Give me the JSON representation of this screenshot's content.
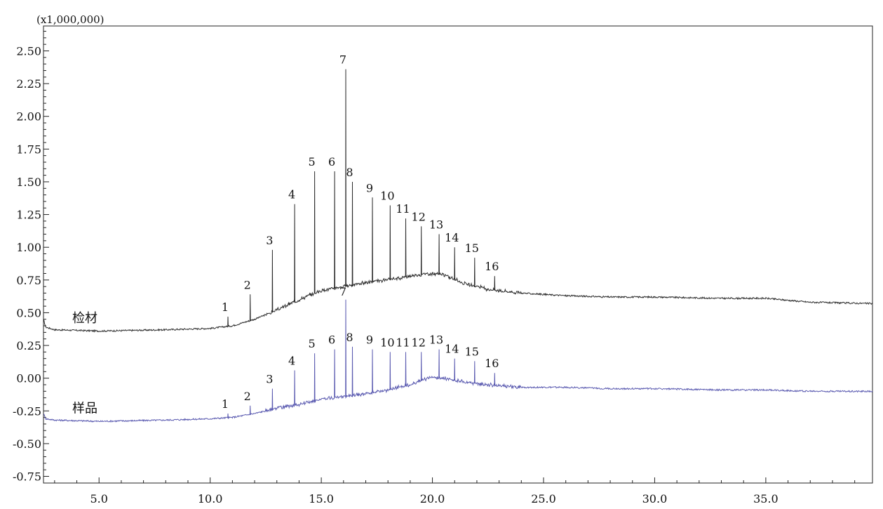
{
  "chart_data": {
    "type": "line",
    "scale_note": "(x1,000,000)",
    "xlim": [
      2.5,
      39.8
    ],
    "ylim": [
      -0.78,
      2.7
    ],
    "x_ticks": [
      5.0,
      10.0,
      15.0,
      20.0,
      25.0,
      30.0,
      35.0
    ],
    "x_tick_labels": [
      "5.0",
      "10.0",
      "15.0",
      "20.0",
      "25.0",
      "30.0",
      "35.0"
    ],
    "y_ticks": [
      2.5,
      2.25,
      2.0,
      1.75,
      1.5,
      1.25,
      1.0,
      0.75,
      0.5,
      0.25,
      0.0,
      -0.25,
      -0.5,
      -0.75
    ],
    "y_tick_labels": [
      "2.50",
      "2.25",
      "2.00",
      "1.75",
      "1.50",
      "1.25",
      "1.00",
      "0.75",
      "0.50",
      "0.25",
      "0.00",
      "-0.25",
      "-0.50",
      "-0.75"
    ],
    "baseline_x": [
      2.5,
      2.6,
      3.0,
      5.0,
      8.0,
      10.0,
      11.0,
      12.0,
      13.0,
      14.0,
      15.0,
      16.0,
      17.0,
      18.0,
      19.0,
      19.8,
      20.5,
      21.5,
      22.5,
      24.0,
      26.0,
      28.0,
      30.0,
      33.0,
      35.0,
      37.0,
      39.8
    ],
    "series": [
      {
        "name": "检材",
        "color": "#2b2b2b",
        "baseline": [
          0.45,
          0.39,
          0.37,
          0.36,
          0.37,
          0.38,
          0.4,
          0.45,
          0.52,
          0.6,
          0.67,
          0.7,
          0.73,
          0.75,
          0.78,
          0.8,
          0.79,
          0.72,
          0.68,
          0.65,
          0.63,
          0.62,
          0.62,
          0.61,
          0.61,
          0.58,
          0.57
        ],
        "peaks": [
          {
            "label": "1",
            "x": 10.8,
            "y": 0.47
          },
          {
            "label": "2",
            "x": 11.8,
            "y": 0.64
          },
          {
            "label": "3",
            "x": 12.8,
            "y": 0.98
          },
          {
            "label": "4",
            "x": 13.8,
            "y": 1.33
          },
          {
            "label": "5",
            "x": 14.7,
            "y": 1.58
          },
          {
            "label": "6",
            "x": 15.6,
            "y": 1.58
          },
          {
            "label": "7",
            "x": 16.1,
            "y": 2.36
          },
          {
            "label": "8",
            "x": 16.4,
            "y": 1.5
          },
          {
            "label": "9",
            "x": 17.3,
            "y": 1.38
          },
          {
            "label": "10",
            "x": 18.1,
            "y": 1.32
          },
          {
            "label": "11",
            "x": 18.8,
            "y": 1.22
          },
          {
            "label": "12",
            "x": 19.5,
            "y": 1.16
          },
          {
            "label": "13",
            "x": 20.3,
            "y": 1.1
          },
          {
            "label": "14",
            "x": 21.0,
            "y": 1.0
          },
          {
            "label": "15",
            "x": 21.9,
            "y": 0.92
          },
          {
            "label": "16",
            "x": 22.8,
            "y": 0.78
          }
        ]
      },
      {
        "name": "样品",
        "color": "#5a5ab0",
        "baseline": [
          -0.27,
          -0.31,
          -0.32,
          -0.33,
          -0.32,
          -0.31,
          -0.3,
          -0.27,
          -0.23,
          -0.2,
          -0.16,
          -0.14,
          -0.12,
          -0.09,
          -0.05,
          0.0,
          0.0,
          -0.03,
          -0.05,
          -0.07,
          -0.07,
          -0.08,
          -0.08,
          -0.09,
          -0.09,
          -0.1,
          -0.1
        ],
        "peaks": [
          {
            "label": "1",
            "x": 10.8,
            "y": -0.27
          },
          {
            "label": "2",
            "x": 11.8,
            "y": -0.21
          },
          {
            "label": "3",
            "x": 12.8,
            "y": -0.08
          },
          {
            "label": "4",
            "x": 13.8,
            "y": 0.06
          },
          {
            "label": "5",
            "x": 14.7,
            "y": 0.19
          },
          {
            "label": "6",
            "x": 15.6,
            "y": 0.22
          },
          {
            "label": "7",
            "x": 16.1,
            "y": 0.6
          },
          {
            "label": "8",
            "x": 16.4,
            "y": 0.24
          },
          {
            "label": "9",
            "x": 17.3,
            "y": 0.22
          },
          {
            "label": "10",
            "x": 18.1,
            "y": 0.2
          },
          {
            "label": "11",
            "x": 18.8,
            "y": 0.2
          },
          {
            "label": "12",
            "x": 19.5,
            "y": 0.2
          },
          {
            "label": "13",
            "x": 20.3,
            "y": 0.22
          },
          {
            "label": "14",
            "x": 21.0,
            "y": 0.15
          },
          {
            "label": "15",
            "x": 21.9,
            "y": 0.13
          },
          {
            "label": "16",
            "x": 22.8,
            "y": 0.04
          }
        ]
      }
    ],
    "grid": false,
    "legend": "inline"
  }
}
